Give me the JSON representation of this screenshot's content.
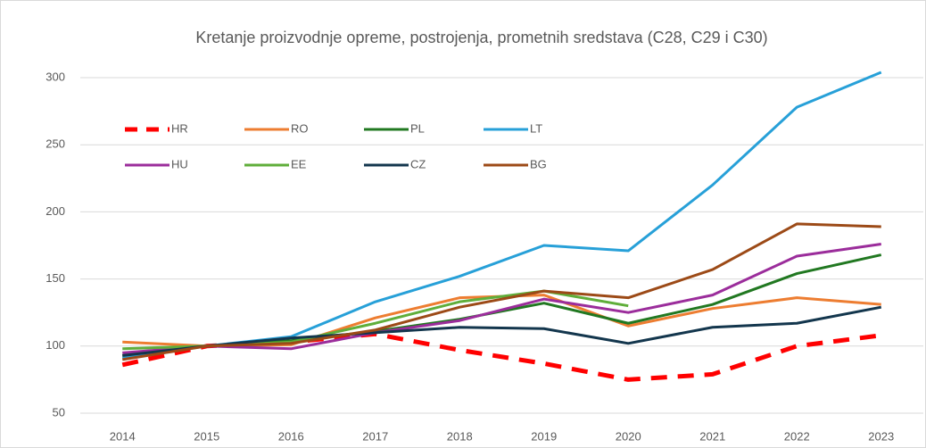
{
  "chart_data": {
    "type": "line",
    "title": "Kretanje proizvodnje opreme, postrojenja, prometnih sredstava (C28, C29 i C30)",
    "categories": [
      "2014",
      "2015",
      "2016",
      "2017",
      "2018",
      "2019",
      "2020",
      "2021",
      "2022",
      "2023"
    ],
    "series": [
      {
        "name": "HR",
        "color": "#ff0000",
        "dashed": true,
        "values": [
          86,
          100,
          103,
          109,
          97,
          87,
          75,
          79,
          100,
          108
        ]
      },
      {
        "name": "RO",
        "color": "#ed7d31",
        "values": [
          103,
          100,
          101,
          121,
          136,
          138,
          115,
          128,
          136,
          131
        ]
      },
      {
        "name": "PL",
        "color": "#217821",
        "values": [
          93,
          100,
          104,
          111,
          120,
          132,
          117,
          131,
          154,
          168
        ]
      },
      {
        "name": "LT",
        "color": "#27a0d8",
        "values": [
          91,
          100,
          107,
          133,
          152,
          175,
          171,
          220,
          278,
          304
        ]
      },
      {
        "name": "HU",
        "color": "#9b2d9b",
        "values": [
          95,
          100,
          98,
          110,
          119,
          135,
          125,
          138,
          167,
          176
        ]
      },
      {
        "name": "EE",
        "color": "#5fae3a",
        "values": [
          98,
          100,
          103,
          117,
          133,
          141,
          130,
          null,
          null,
          null
        ]
      },
      {
        "name": "CZ",
        "color": "#13364d",
        "values": [
          93,
          100,
          106,
          110,
          114,
          113,
          102,
          114,
          117,
          129
        ]
      },
      {
        "name": "BG",
        "color": "#9c4a17",
        "values": [
          90,
          100,
          102,
          112,
          129,
          141,
          136,
          157,
          191,
          189
        ]
      }
    ],
    "ylim": [
      50,
      300
    ],
    "yticks": [
      50,
      100,
      150,
      200,
      250,
      300
    ],
    "grid": true
  }
}
